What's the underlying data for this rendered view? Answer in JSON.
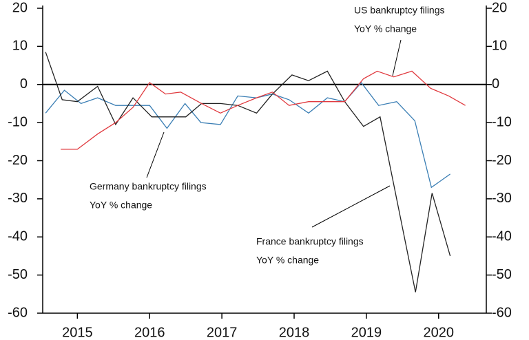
{
  "chart_data": {
    "type": "line",
    "xlim": [
      2014.52,
      2020.66
    ],
    "xticks": [
      2015,
      2016,
      2017,
      2018,
      2019,
      2020
    ],
    "ylim": [
      -60,
      20
    ],
    "yticks": [
      20,
      10,
      0,
      -10,
      -20,
      -30,
      -40,
      -50,
      -60
    ],
    "y2lim": [
      -60,
      20
    ],
    "y2ticks": [
      20,
      10,
      0,
      -10,
      -20,
      -30,
      -40,
      -50,
      -60
    ],
    "annotations": [
      {
        "lines": [
          "US bankruptcy filings",
          "YoY % change"
        ]
      },
      {
        "lines": [
          "Germany bankruptcy filings",
          "YoY % change"
        ]
      },
      {
        "lines": [
          "France bankruptcy filings",
          "YoY % change"
        ]
      }
    ],
    "series": [
      {
        "color": "#3a7eb4",
        "x": [
          2014.56,
          2014.82,
          2015.05,
          2015.28,
          2015.53,
          2015.77,
          2016.0,
          2016.24,
          2016.49,
          2016.71,
          2016.98,
          2017.22,
          2017.48,
          2017.7,
          2017.93,
          2018.2,
          2018.46,
          2018.7,
          2018.93,
          2019.17,
          2019.42,
          2019.67,
          2019.9,
          2020.16
        ],
        "values": [
          -7.5,
          -1.5,
          -5,
          -3.5,
          -5.5,
          -5.5,
          -5.5,
          -11.5,
          -5,
          -10,
          -10.5,
          -3,
          -3.5,
          -2.5,
          -4,
          -7.5,
          -3.5,
          -4.5,
          0.5,
          -5.5,
          -4.5,
          -9.5,
          -27,
          -23.5
        ]
      },
      {
        "color": "#222222",
        "x": [
          2014.56,
          2014.79,
          2015.0,
          2015.28,
          2015.53,
          2015.77,
          2016.03,
          2016.26,
          2016.5,
          2016.72,
          2016.98,
          2017.22,
          2017.48,
          2017.7,
          2017.97,
          2018.2,
          2018.46,
          2018.7,
          2018.96,
          2019.19,
          2019.68,
          2019.91,
          2020.16
        ],
        "values": [
          8.5,
          -4,
          -4.5,
          -0.5,
          -10.5,
          -3.5,
          -8.5,
          -8.5,
          -8.5,
          -5,
          -5,
          -5.5,
          -7.5,
          -2.5,
          2.5,
          1,
          3.5,
          -4.5,
          -11,
          -8.5,
          -54.5,
          -28.5,
          -45
        ]
      },
      {
        "color": "#e0393e",
        "x": [
          2014.77,
          2015.0,
          2015.28,
          2015.53,
          2015.77,
          2016.0,
          2016.22,
          2016.43,
          2016.72,
          2016.98,
          2017.22,
          2017.48,
          2017.7,
          2017.93,
          2018.2,
          2018.46,
          2018.7,
          2018.96,
          2019.15,
          2019.38,
          2019.63,
          2019.89,
          2020.14,
          2020.37
        ],
        "values": [
          -17,
          -17,
          -13,
          -10,
          -6,
          0.5,
          -2.5,
          -2,
          -5,
          -7.5,
          -5.5,
          -3.5,
          -2,
          -5.5,
          -4.5,
          -4.5,
          -4.5,
          1.5,
          3.5,
          2,
          3.5,
          -1,
          -3,
          -5.5
        ]
      }
    ]
  }
}
